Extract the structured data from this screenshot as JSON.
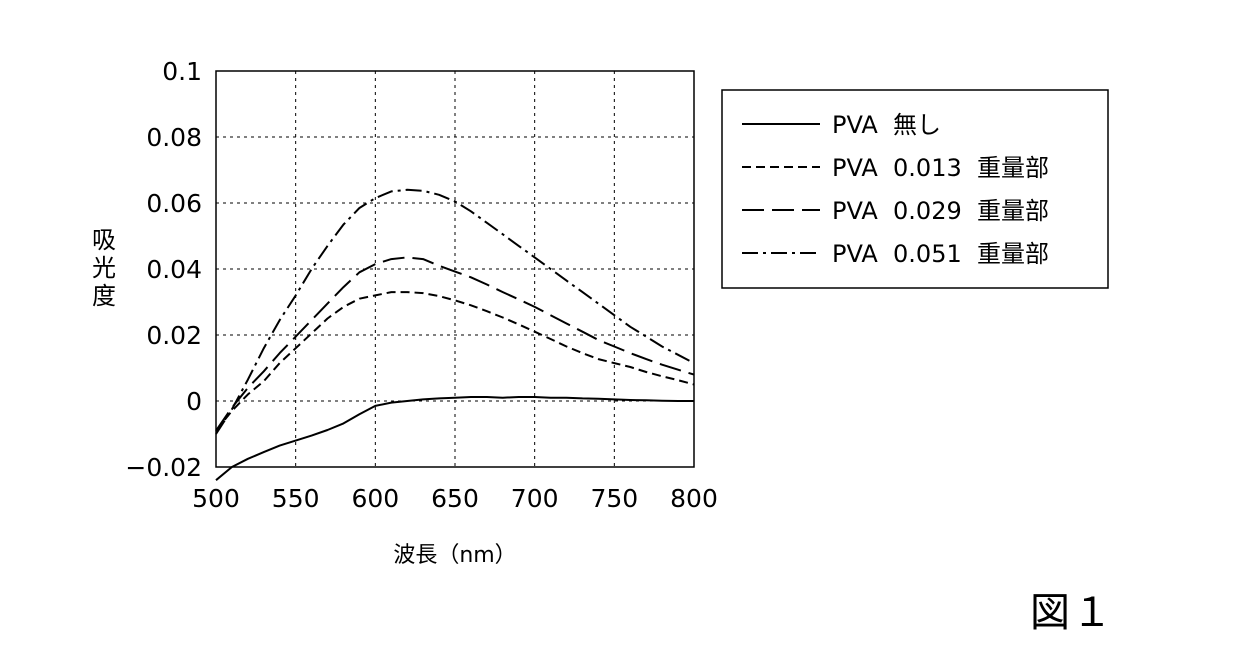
{
  "figure_label": "図１",
  "chart_data": {
    "type": "line",
    "xlabel": "波長（nm）",
    "ylabel": "吸光度",
    "xlim": [
      500,
      800
    ],
    "ylim": [
      -0.02,
      0.1
    ],
    "xticks": [
      500,
      550,
      600,
      650,
      700,
      750,
      800
    ],
    "xtick_labels": [
      "500",
      "550",
      "600",
      "650",
      "700",
      "750",
      "800"
    ],
    "yticks": [
      -0.02,
      0,
      0.02,
      0.04,
      0.06,
      0.08,
      0.1
    ],
    "ytick_labels": [
      "−0.02",
      "0",
      "0.02",
      "0.04",
      "0.06",
      "0.08",
      "0.1"
    ],
    "grid": true,
    "legend_position": "right",
    "x": [
      500,
      510,
      520,
      530,
      540,
      550,
      560,
      570,
      580,
      590,
      600,
      610,
      620,
      630,
      640,
      650,
      660,
      670,
      680,
      690,
      700,
      710,
      720,
      730,
      740,
      750,
      760,
      770,
      780,
      790,
      800
    ],
    "series": [
      {
        "name": "PVA  無し",
        "style": "solid",
        "values": [
          -0.024,
          -0.02,
          -0.0175,
          -0.0155,
          -0.0135,
          -0.012,
          -0.0105,
          -0.0088,
          -0.0068,
          -0.004,
          -0.0015,
          -0.0005,
          0.0,
          0.0005,
          0.0008,
          0.001,
          0.0012,
          0.0012,
          0.001,
          0.0012,
          0.0012,
          0.001,
          0.001,
          0.0008,
          0.0007,
          0.0005,
          0.0003,
          0.0002,
          0.0001,
          0.0,
          0.0
        ]
      },
      {
        "name": "PVA  0.013  重量部",
        "style": "dashed",
        "values": [
          -0.009,
          -0.003,
          0.002,
          0.006,
          0.0115,
          0.016,
          0.0205,
          0.025,
          0.0285,
          0.031,
          0.032,
          0.033,
          0.033,
          0.0327,
          0.0318,
          0.0305,
          0.029,
          0.0272,
          0.0253,
          0.0232,
          0.021,
          0.0188,
          0.0165,
          0.0145,
          0.0127,
          0.0115,
          0.0103,
          0.0088,
          0.0075,
          0.0063,
          0.005
        ]
      },
      {
        "name": "PVA  0.029  重量部",
        "style": "longdash",
        "values": [
          -0.009,
          -0.002,
          0.004,
          0.009,
          0.0145,
          0.0195,
          0.0245,
          0.0295,
          0.0345,
          0.039,
          0.0415,
          0.043,
          0.0435,
          0.043,
          0.041,
          0.0392,
          0.0375,
          0.0353,
          0.033,
          0.0308,
          0.0285,
          0.026,
          0.0235,
          0.021,
          0.0185,
          0.0165,
          0.0145,
          0.0127,
          0.011,
          0.0095,
          0.008
        ]
      },
      {
        "name": "PVA  0.051  重量部",
        "style": "dashdot",
        "values": [
          -0.01,
          -0.0025,
          0.0065,
          0.016,
          0.0245,
          0.032,
          0.04,
          0.047,
          0.0535,
          0.0585,
          0.0615,
          0.0635,
          0.064,
          0.0637,
          0.0625,
          0.0605,
          0.0575,
          0.054,
          0.0505,
          0.047,
          0.0435,
          0.04,
          0.0365,
          0.033,
          0.0295,
          0.026,
          0.0225,
          0.0195,
          0.0165,
          0.014,
          0.0115
        ]
      }
    ]
  }
}
